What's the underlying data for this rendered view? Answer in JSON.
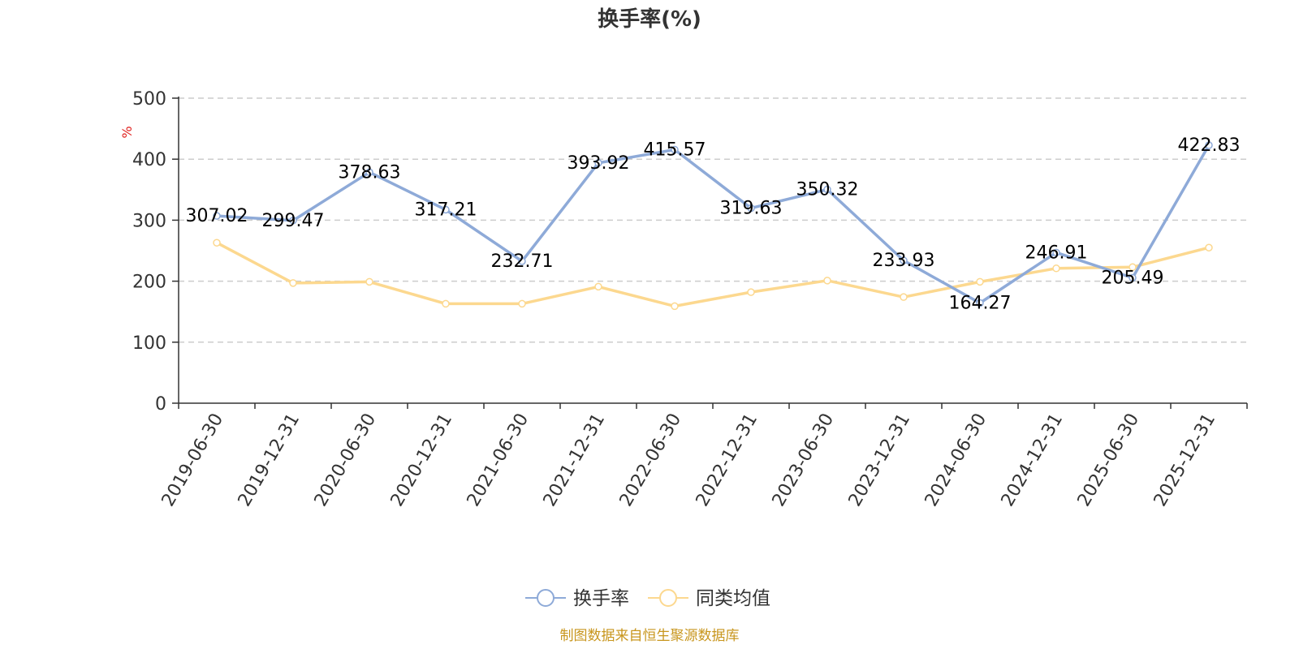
{
  "chart_data": {
    "type": "line",
    "title": "换手率(%)",
    "ylabel": "%",
    "xlabel": "",
    "ylim": [
      0,
      500
    ],
    "yticks": [
      0,
      100,
      200,
      300,
      400,
      500
    ],
    "grid": true,
    "legend_position": "bottom-center",
    "categories": [
      "2019-06-30",
      "2019-12-31",
      "2020-06-30",
      "2020-12-31",
      "2021-06-30",
      "2021-12-31",
      "2022-06-30",
      "2022-12-31",
      "2023-06-30",
      "2023-12-31",
      "2024-06-30",
      "2024-12-31",
      "2025-06-30",
      "2025-12-31"
    ],
    "series": [
      {
        "name": "换手率",
        "color": "#8eaad8",
        "values": [
          307.02,
          299.47,
          378.63,
          317.21,
          232.71,
          393.92,
          415.57,
          319.63,
          350.32,
          233.93,
          164.27,
          246.91,
          205.49,
          422.83
        ],
        "labels": [
          "307.02",
          "299.47",
          "378.63",
          "317.21",
          "232.71",
          "393.92",
          "415.57",
          "319.63",
          "350.32",
          "233.93",
          "164.27",
          "246.91",
          "205.49",
          "422.83"
        ]
      },
      {
        "name": "同类均值",
        "color": "#fcd88f",
        "values": [
          263,
          197,
          199,
          163,
          163,
          191,
          159,
          182,
          201,
          174,
          199,
          221,
          223,
          255
        ]
      }
    ]
  },
  "source": "制图数据来自恒生聚源数据库"
}
